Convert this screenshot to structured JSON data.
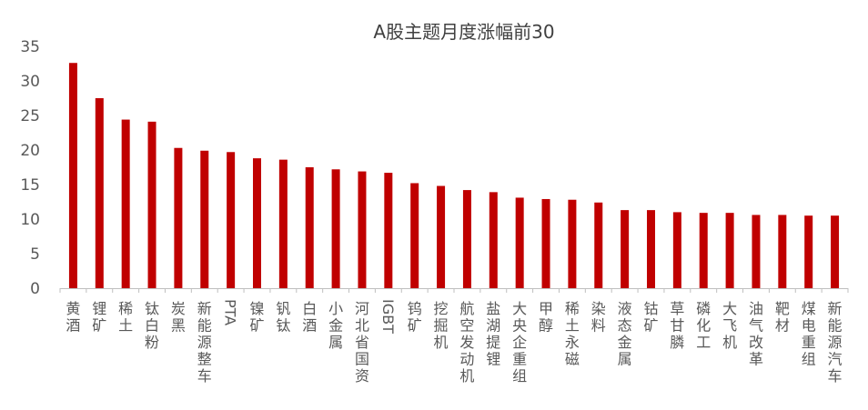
{
  "chart_data": {
    "type": "bar",
    "title": "A股主题月度涨幅前30",
    "xlabel": "",
    "ylabel": "",
    "ylim": [
      0,
      35
    ],
    "yticks": [
      0,
      5,
      10,
      15,
      20,
      25,
      30,
      35
    ],
    "grid": false,
    "bar_color": "#C00000",
    "categories": [
      "黄酒",
      "锂矿",
      "稀土",
      "钛白粉",
      "炭黑",
      "新能源整车",
      "PTA",
      "镍矿",
      "钒钛",
      "白酒",
      "小金属",
      "河北省国资",
      "IGBT",
      "钨矿",
      "挖掘机",
      "航空发动机",
      "盐湖提锂",
      "大央企重组",
      "甲醇",
      "稀土永磁",
      "染料",
      "液态金属",
      "钴矿",
      "草甘膦",
      "磷化工",
      "大飞机",
      "油气改革",
      "靶材",
      "煤电重组",
      "新能源汽车"
    ],
    "values": [
      32.6,
      27.5,
      24.4,
      24.1,
      20.3,
      19.9,
      19.7,
      18.8,
      18.6,
      17.5,
      17.2,
      16.9,
      16.7,
      15.2,
      14.8,
      14.2,
      13.9,
      13.1,
      12.9,
      12.8,
      12.4,
      11.3,
      11.3,
      11.0,
      10.9,
      10.9,
      10.6,
      10.6,
      10.5,
      10.5
    ]
  }
}
